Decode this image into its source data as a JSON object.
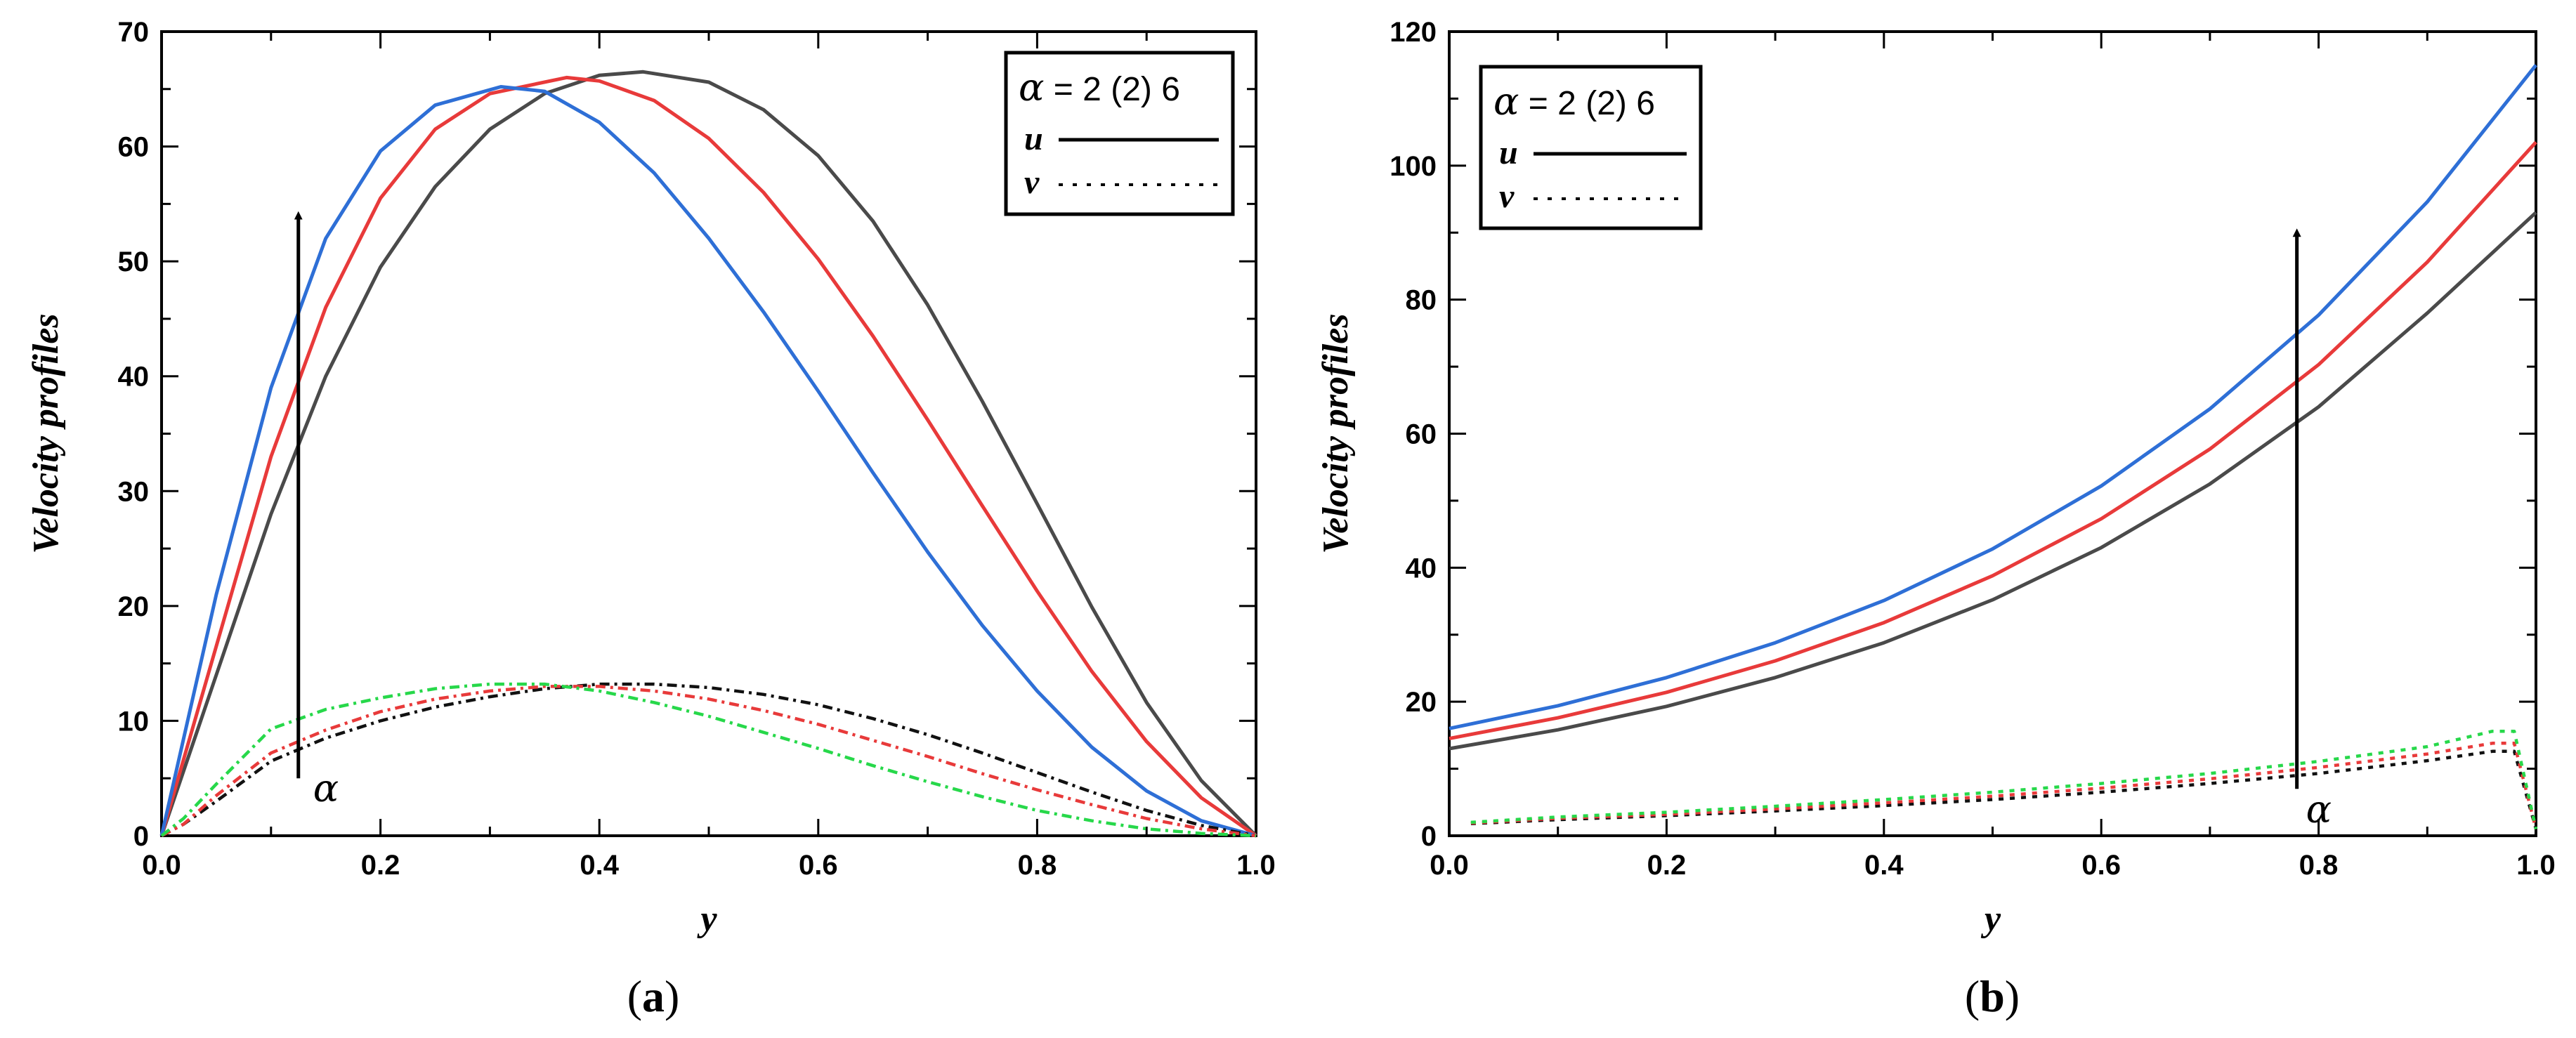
{
  "chart_data": [
    {
      "type": "line",
      "panel": "(a)",
      "caption_open": "(",
      "caption_letter": "a",
      "caption_close": ")",
      "xlabel": "y",
      "ylabel": "Velocity profiles",
      "xlim": [
        0.0,
        1.0
      ],
      "ylim": [
        0,
        70
      ],
      "x_ticks": [
        "0.0",
        "0.2",
        "0.4",
        "0.6",
        "0.8",
        "1.0"
      ],
      "y_ticks": [
        "0",
        "10",
        "20",
        "30",
        "40",
        "50",
        "60",
        "70"
      ],
      "legend": {
        "title_symbol": "α",
        "title_text": " = 2 (2) 6",
        "entries": [
          {
            "label": "u",
            "style": "solid"
          },
          {
            "label": "v",
            "style": "dotted"
          }
        ],
        "placement": "top-right"
      },
      "annotation": {
        "symbol": "α",
        "arrow_from": [
          0.125,
          5
        ],
        "arrow_to": [
          0.125,
          54
        ],
        "label_at": [
          0.15,
          3
        ]
      },
      "series": [
        {
          "name": "u, α = 2",
          "color": "#4a4a4a",
          "dash": "solid",
          "x": [
            0,
            0.05,
            0.1,
            0.15,
            0.2,
            0.25,
            0.3,
            0.35,
            0.4,
            0.44,
            0.5,
            0.55,
            0.6,
            0.65,
            0.7,
            0.75,
            0.8,
            0.85,
            0.9,
            0.95,
            1.0
          ],
          "y": [
            0,
            14,
            28,
            40,
            49.5,
            56.5,
            61.5,
            64.6,
            66.2,
            66.5,
            65.6,
            63.2,
            59.2,
            53.5,
            46.2,
            37.8,
            28.9,
            19.9,
            11.6,
            4.8,
            0
          ]
        },
        {
          "name": "u, α = 4",
          "color": "#e83a3a",
          "dash": "solid",
          "x": [
            0,
            0.05,
            0.1,
            0.15,
            0.2,
            0.25,
            0.3,
            0.37,
            0.4,
            0.45,
            0.5,
            0.55,
            0.6,
            0.65,
            0.7,
            0.75,
            0.8,
            0.85,
            0.9,
            0.95,
            1.0
          ],
          "y": [
            0,
            16.5,
            33,
            46,
            55.5,
            61.5,
            64.6,
            66.0,
            65.7,
            64,
            60.7,
            56,
            50.2,
            43.5,
            36.2,
            28.7,
            21.3,
            14.3,
            8.2,
            3.3,
            0
          ]
        },
        {
          "name": "u, α = 6",
          "color": "#2e6fd6",
          "dash": "solid",
          "x": [
            0,
            0.05,
            0.1,
            0.15,
            0.2,
            0.25,
            0.31,
            0.35,
            0.4,
            0.45,
            0.5,
            0.55,
            0.6,
            0.65,
            0.7,
            0.75,
            0.8,
            0.85,
            0.9,
            0.95,
            1.0
          ],
          "y": [
            0,
            21,
            39,
            52,
            59.6,
            63.6,
            65.2,
            64.8,
            62.1,
            57.7,
            52,
            45.6,
            38.7,
            31.6,
            24.7,
            18.3,
            12.6,
            7.7,
            3.9,
            1.3,
            0
          ]
        },
        {
          "name": "v, α = 2",
          "color": "#111111",
          "dash": "dashdot",
          "x": [
            0,
            0.02,
            0.05,
            0.1,
            0.15,
            0.2,
            0.25,
            0.3,
            0.35,
            0.4,
            0.45,
            0.5,
            0.55,
            0.6,
            0.65,
            0.7,
            0.75,
            0.8,
            0.85,
            0.9,
            0.95,
            1.0
          ],
          "y": [
            0,
            1,
            3,
            6.5,
            8.5,
            10,
            11.2,
            12.1,
            12.8,
            13.2,
            13.2,
            12.9,
            12.3,
            11.4,
            10.2,
            8.8,
            7.2,
            5.5,
            3.8,
            2.2,
            0.9,
            0
          ]
        },
        {
          "name": "v, α = 4",
          "color": "#e83a3a",
          "dash": "dashdot",
          "x": [
            0,
            0.02,
            0.05,
            0.1,
            0.15,
            0.2,
            0.25,
            0.3,
            0.35,
            0.4,
            0.45,
            0.5,
            0.55,
            0.6,
            0.65,
            0.7,
            0.75,
            0.8,
            0.85,
            0.9,
            0.95,
            1.0
          ],
          "y": [
            0,
            1,
            3.5,
            7.2,
            9.2,
            10.8,
            11.9,
            12.6,
            13.0,
            13.0,
            12.6,
            11.9,
            10.9,
            9.7,
            8.3,
            6.9,
            5.4,
            4.0,
            2.7,
            1.5,
            0.6,
            0
          ]
        },
        {
          "name": "v, α = 6",
          "color": "#27d84a",
          "dash": "dashdot",
          "x": [
            0,
            0.02,
            0.05,
            0.1,
            0.15,
            0.2,
            0.25,
            0.3,
            0.35,
            0.4,
            0.45,
            0.5,
            0.55,
            0.6,
            0.65,
            0.7,
            0.75,
            0.8,
            0.85,
            0.9,
            0.95,
            1.0
          ],
          "y": [
            0,
            1.5,
            4.5,
            9.3,
            11,
            12,
            12.8,
            13.2,
            13.2,
            12.6,
            11.6,
            10.4,
            9.0,
            7.6,
            6.1,
            4.7,
            3.4,
            2.2,
            1.3,
            0.6,
            0.2,
            0
          ]
        }
      ]
    },
    {
      "type": "line",
      "panel": "(b)",
      "caption_open": "(",
      "caption_letter": "b",
      "caption_close": ")",
      "xlabel": "y",
      "ylabel": "Velocity profiles",
      "xlim": [
        0.0,
        1.0
      ],
      "ylim": [
        0,
        120
      ],
      "x_ticks": [
        "0.0",
        "0.2",
        "0.4",
        "0.6",
        "0.8",
        "1.0"
      ],
      "y_ticks": [
        "0",
        "20",
        "40",
        "60",
        "80",
        "100",
        "120"
      ],
      "legend": {
        "title_symbol": "α",
        "title_text": " = 2 (2) 6",
        "entries": [
          {
            "label": "u",
            "style": "solid"
          },
          {
            "label": "v",
            "style": "dotted"
          }
        ],
        "placement": "top-left"
      },
      "annotation": {
        "symbol": "α",
        "arrow_from": [
          0.78,
          7
        ],
        "arrow_to": [
          0.78,
          90
        ],
        "label_at": [
          0.8,
          2
        ]
      },
      "series": [
        {
          "name": "u, α = 2",
          "color": "#4a4a4a",
          "dash": "solid",
          "x": [
            0,
            0.1,
            0.2,
            0.3,
            0.4,
            0.5,
            0.6,
            0.7,
            0.8,
            0.9,
            1.0
          ],
          "y": [
            13,
            15.8,
            19.3,
            23.6,
            28.8,
            35.2,
            43,
            52.5,
            64,
            78,
            93
          ]
        },
        {
          "name": "u, α = 4",
          "color": "#e83a3a",
          "dash": "solid",
          "x": [
            0,
            0.1,
            0.2,
            0.3,
            0.4,
            0.5,
            0.6,
            0.7,
            0.8,
            0.9,
            1.0
          ],
          "y": [
            14.5,
            17.6,
            21.4,
            26.1,
            31.8,
            38.8,
            47.3,
            57.7,
            70.3,
            85.6,
            103.5
          ]
        },
        {
          "name": "u, α = 6",
          "color": "#2e6fd6",
          "dash": "solid",
          "x": [
            0,
            0.1,
            0.2,
            0.3,
            0.4,
            0.5,
            0.6,
            0.7,
            0.8,
            0.9,
            1.0
          ],
          "y": [
            16,
            19.4,
            23.6,
            28.8,
            35.1,
            42.8,
            52.2,
            63.7,
            77.7,
            94.6,
            115
          ]
        },
        {
          "name": "v, α = 2",
          "color": "#111111",
          "dash": "dotted",
          "x": [
            0.02,
            0.1,
            0.2,
            0.3,
            0.4,
            0.5,
            0.6,
            0.7,
            0.8,
            0.9,
            0.96,
            0.98,
            1.0
          ],
          "y": [
            1.8,
            2.4,
            3,
            3.7,
            4.5,
            5.4,
            6.5,
            7.8,
            9.3,
            11.2,
            12.6,
            12.6,
            1
          ]
        },
        {
          "name": "v, α = 4",
          "color": "#e83a3a",
          "dash": "dotted",
          "x": [
            0.02,
            0.1,
            0.2,
            0.3,
            0.4,
            0.5,
            0.6,
            0.7,
            0.8,
            0.9,
            0.96,
            0.98,
            1.0
          ],
          "y": [
            1.9,
            2.6,
            3.2,
            4,
            4.9,
            5.9,
            7.1,
            8.5,
            10.2,
            12.2,
            13.8,
            13.8,
            1
          ]
        },
        {
          "name": "v, α = 6",
          "color": "#27d84a",
          "dash": "dotted",
          "x": [
            0.02,
            0.1,
            0.2,
            0.3,
            0.4,
            0.5,
            0.6,
            0.7,
            0.8,
            0.9,
            0.96,
            0.98,
            1.0
          ],
          "y": [
            2,
            2.8,
            3.5,
            4.4,
            5.4,
            6.5,
            7.8,
            9.3,
            11.1,
            13.3,
            15.6,
            15.6,
            1
          ]
        }
      ]
    }
  ]
}
